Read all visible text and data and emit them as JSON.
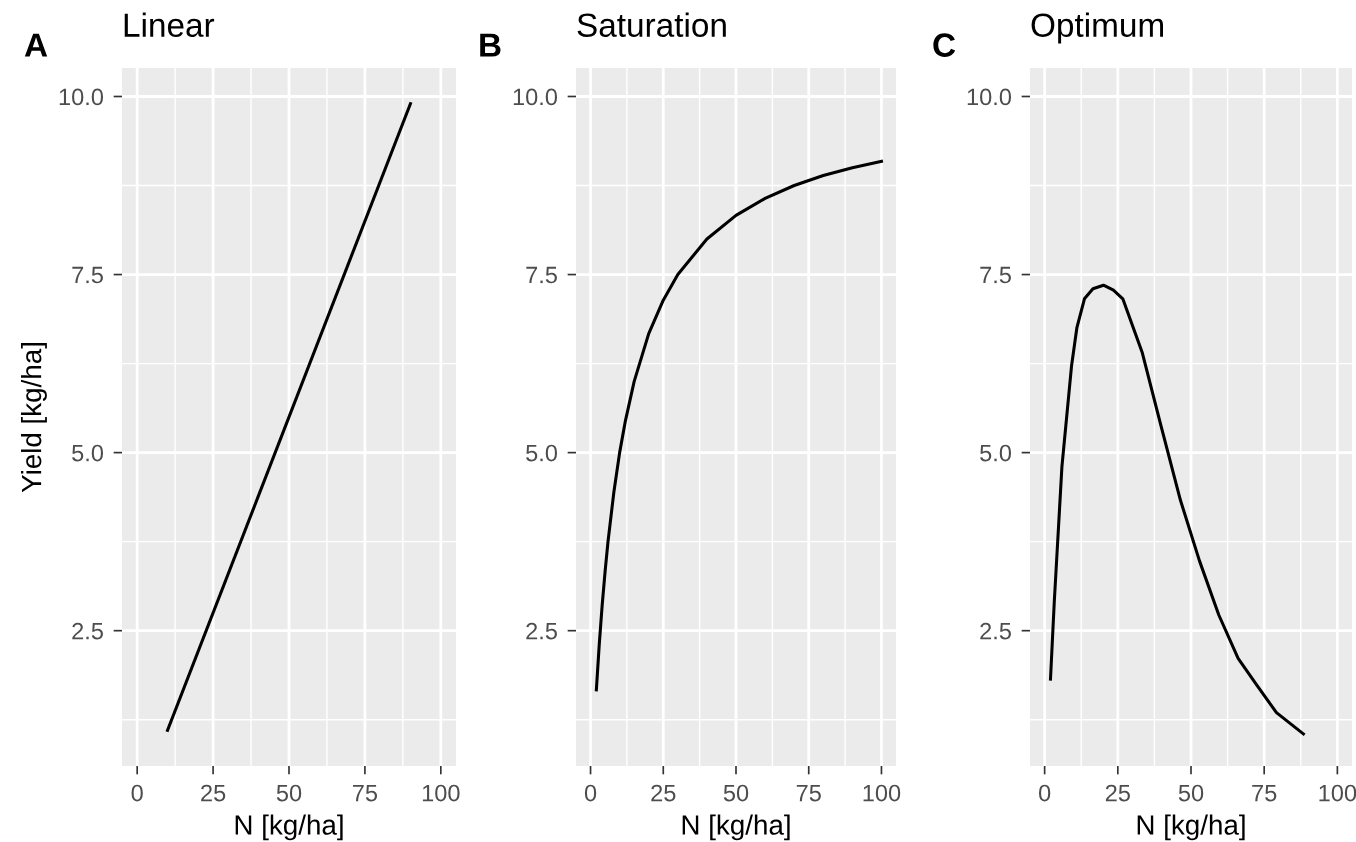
{
  "chart_data": [
    {
      "type": "line",
      "title": "Linear",
      "annotations": [
        "A"
      ],
      "xlabel": "N [kg/ha]",
      "ylabel": "Yield [kg/ha]",
      "grid": true,
      "xlim": [
        -5,
        105
      ],
      "xticks": [
        0,
        25,
        50,
        75,
        100
      ],
      "ylim": [
        0.6,
        10.4
      ],
      "yticks": [
        {
          "value": 2.5,
          "label": "2.5"
        },
        {
          "value": 5,
          "label": "5.0"
        },
        {
          "value": 7.5,
          "label": "7.5"
        },
        {
          "value": 10,
          "label": "10.0"
        }
      ],
      "series": [
        {
          "color": "#000000",
          "x": [
            10,
            90
          ],
          "values": [
            1.1,
            9.9
          ]
        }
      ]
    },
    {
      "type": "line",
      "title": "Saturation",
      "annotations": [
        "B"
      ],
      "xlabel": "N [kg/ha]",
      "grid": true,
      "xlim": [
        -5,
        105
      ],
      "xticks": [
        0,
        25,
        50,
        75,
        100
      ],
      "ylim": [
        0.6,
        10.4
      ],
      "yticks": [
        {
          "value": 2.5,
          "label": "2.5"
        },
        {
          "value": 5,
          "label": "5.0"
        },
        {
          "value": 7.5,
          "label": "7.5"
        },
        {
          "value": 10,
          "label": "10.0"
        }
      ],
      "series": [
        {
          "color": "#000000",
          "x": [
            2,
            3,
            4,
            5,
            6,
            8,
            10,
            12,
            15,
            20,
            25,
            30,
            40,
            50,
            60,
            70,
            80,
            90,
            100
          ],
          "values": [
            1.67,
            2.31,
            2.86,
            3.33,
            3.75,
            4.44,
            5.0,
            5.45,
            6.0,
            6.67,
            7.14,
            7.5,
            8.0,
            8.33,
            8.57,
            8.75,
            8.89,
            9.0,
            9.09
          ]
        }
      ]
    },
    {
      "type": "line",
      "title": "Optimum",
      "annotations": [
        "C"
      ],
      "xlabel": "N [kg/ha]",
      "grid": true,
      "xlim": [
        -5,
        105
      ],
      "xticks": [
        0,
        25,
        50,
        75,
        100
      ],
      "ylim": [
        0.6,
        10.4
      ],
      "yticks": [
        {
          "value": 2.5,
          "label": "2.5"
        },
        {
          "value": 5,
          "label": "5.0"
        },
        {
          "value": 7.5,
          "label": "7.5"
        },
        {
          "value": 10,
          "label": "10.0"
        }
      ],
      "series": [
        {
          "color": "#000000",
          "x": [
            2,
            3.3,
            5.9,
            9.2,
            11,
            13.6,
            16.5,
            20.1,
            23.5,
            26.7,
            33.3,
            39.8,
            46.4,
            52.9,
            59.5,
            66.1,
            72.6,
            79.2,
            88.4
          ],
          "values": [
            1.82,
            2.91,
            4.8,
            6.22,
            6.75,
            7.16,
            7.3,
            7.35,
            7.28,
            7.16,
            6.41,
            5.37,
            4.33,
            3.48,
            2.72,
            2.11,
            1.73,
            1.35,
            1.05
          ]
        }
      ]
    }
  ]
}
